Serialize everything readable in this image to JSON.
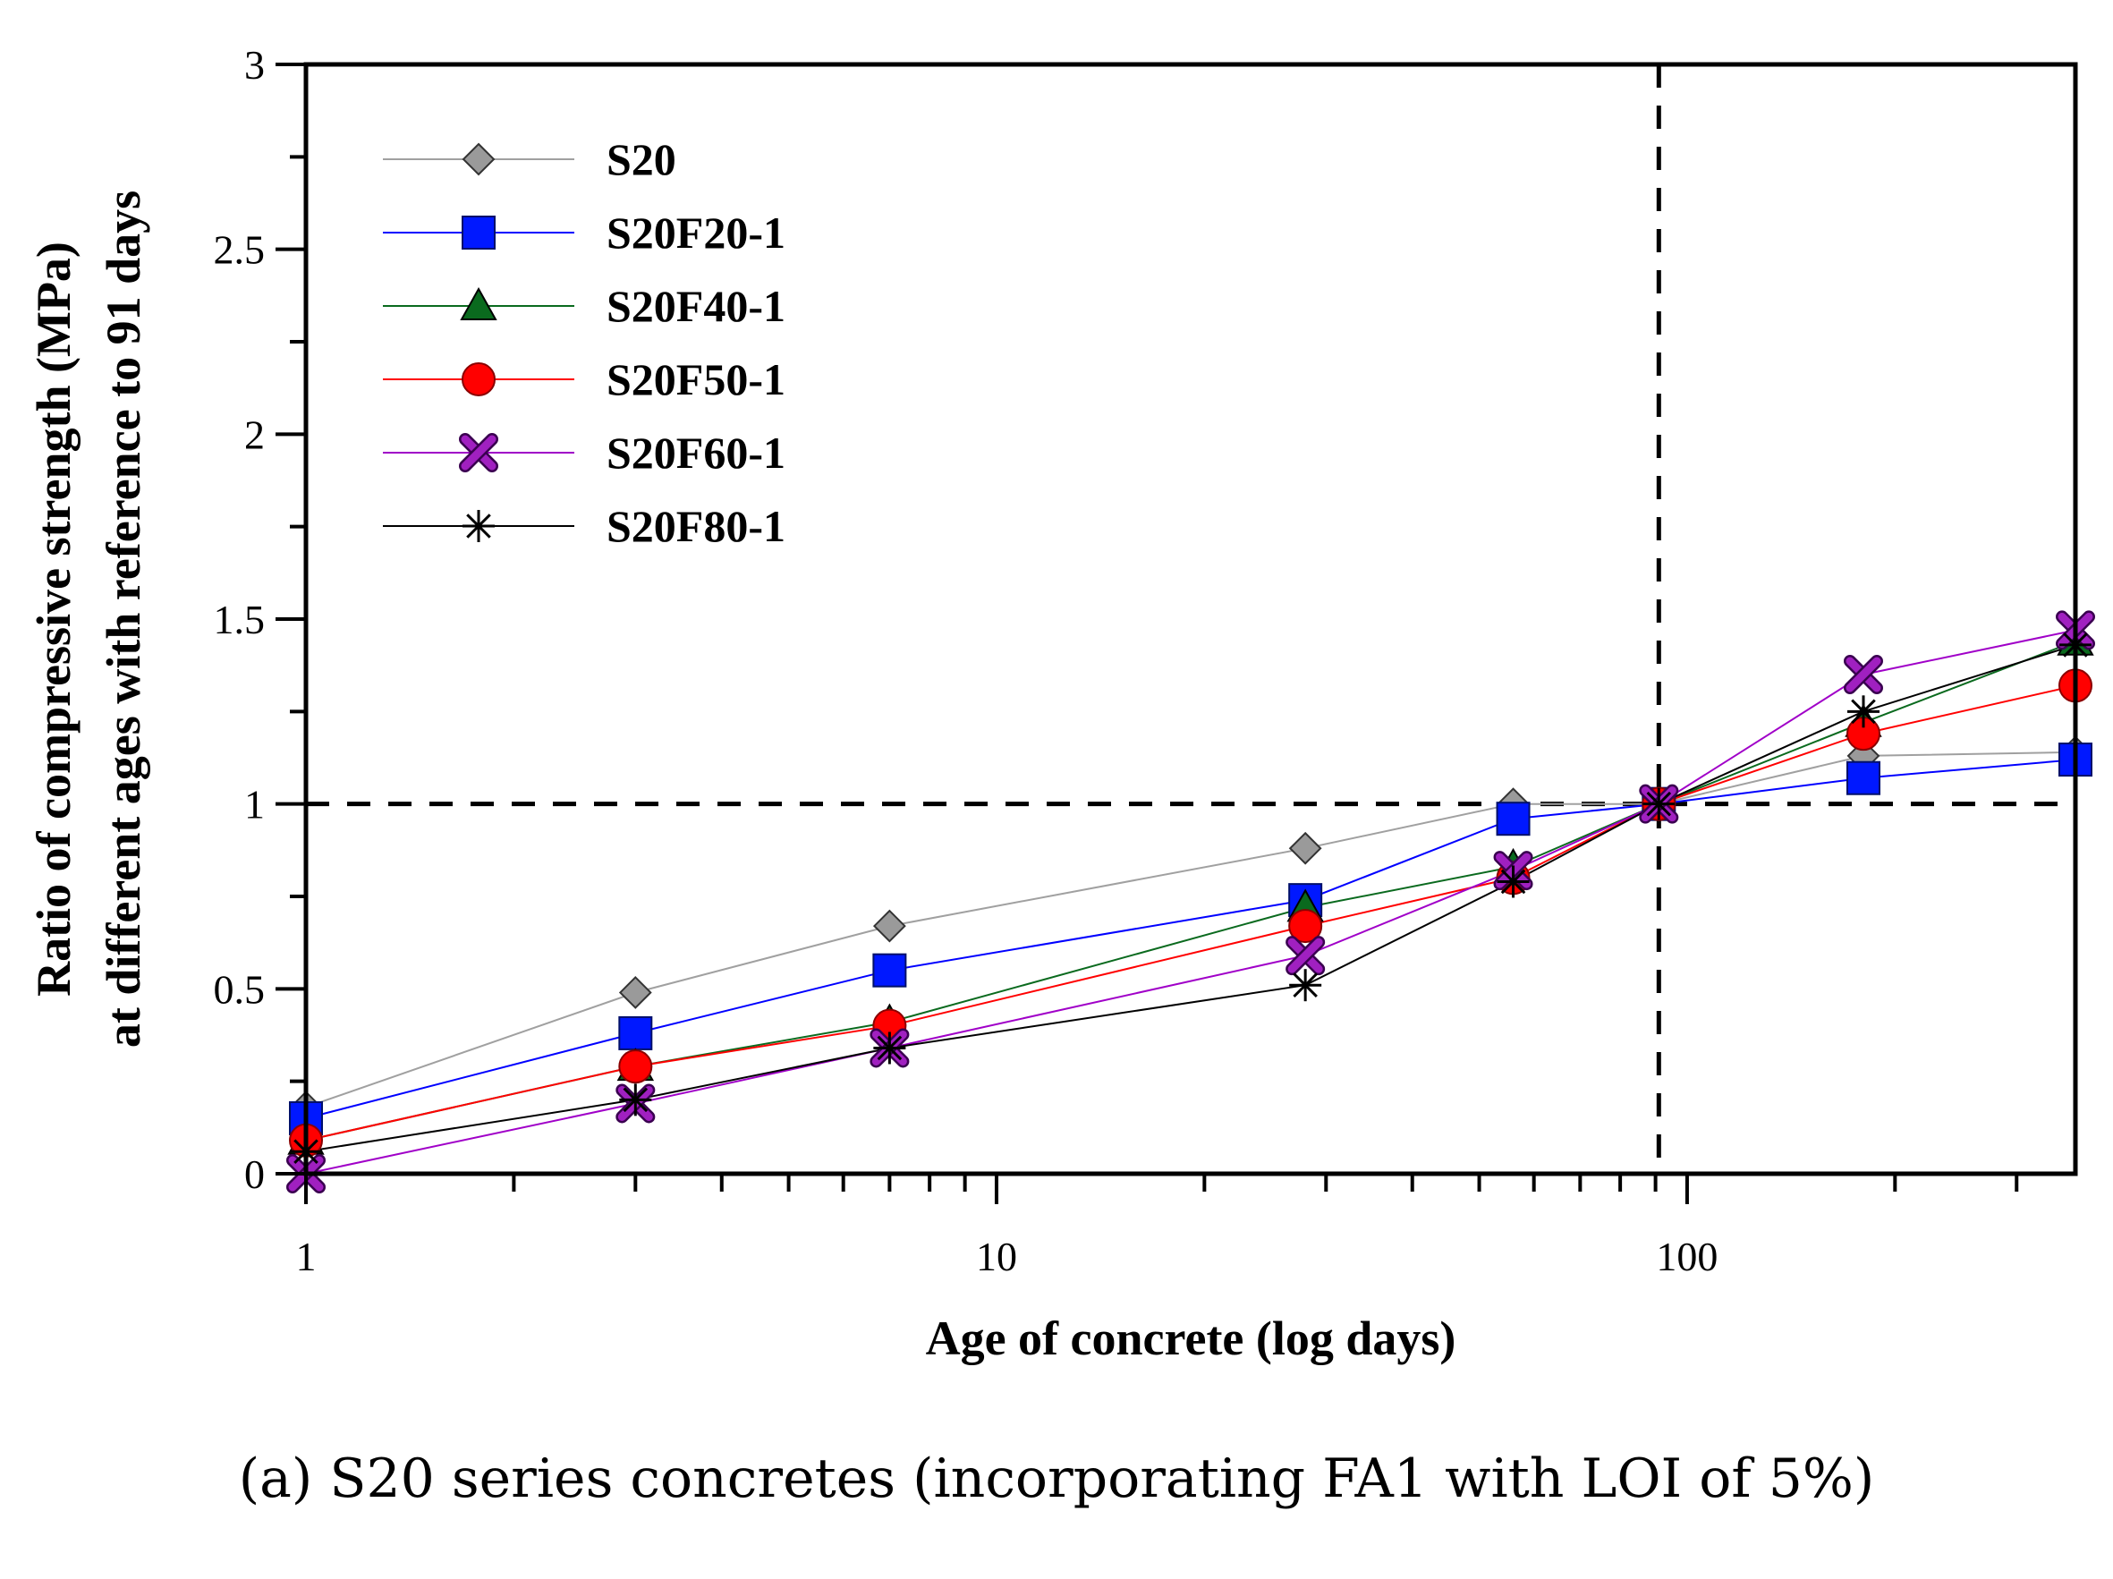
{
  "caption": "(a) S20 series concretes (incorporating FA1 with LOI of 5%)",
  "chart_data": {
    "type": "line",
    "title": "",
    "xlabel": "Age of concrete (log days)",
    "ylabel_line1": "Ratio of compressive strength (MPa)",
    "ylabel_line2": "at different ages with reference to 91 days",
    "xscale": "log",
    "xlim": [
      1,
      365
    ],
    "ylim": [
      0,
      3
    ],
    "x_ticks": [
      1,
      10,
      100
    ],
    "x_tick_labels": [
      "1",
      "10",
      "100"
    ],
    "y_ticks": [
      0,
      0.5,
      1,
      1.5,
      2,
      2.5,
      3
    ],
    "y_tick_labels": [
      "0",
      "0.5",
      "1",
      "1.5",
      "2",
      "2.5",
      "3"
    ],
    "x": [
      1,
      3,
      7,
      28,
      56,
      91,
      180,
      365
    ],
    "reference_lines": {
      "horizontal_y": 1,
      "vertical_x": 91,
      "style": "dashed"
    },
    "legend_position": "top-left",
    "series": [
      {
        "name": "S20",
        "marker": "diamond",
        "color": "#9a9a9a",
        "line_color": "#a0a0a0",
        "values": [
          0.18,
          0.49,
          0.67,
          0.88,
          1.0,
          1.0,
          1.13,
          1.14
        ]
      },
      {
        "name": "S20F20-1",
        "marker": "square",
        "color": "#0018ff",
        "line_color": "#0000ff",
        "values": [
          0.15,
          0.38,
          0.55,
          0.74,
          0.96,
          1.0,
          1.07,
          1.12
        ]
      },
      {
        "name": "S20F40-1",
        "marker": "triangle",
        "color": "#0a6a1e",
        "line_color": "#0a6a1e",
        "values": [
          0.09,
          0.29,
          0.41,
          0.72,
          0.83,
          1.0,
          1.22,
          1.44
        ]
      },
      {
        "name": "S20F50-1",
        "marker": "circle",
        "color": "#ff0000",
        "line_color": "#ff0000",
        "values": [
          0.09,
          0.29,
          0.4,
          0.67,
          0.8,
          1.0,
          1.19,
          1.32
        ]
      },
      {
        "name": "S20F60-1",
        "marker": "x",
        "color": "#a020c0",
        "line_color": "#a000c8",
        "values": [
          0.0,
          0.19,
          0.34,
          0.59,
          0.82,
          1.0,
          1.35,
          1.47
        ]
      },
      {
        "name": "S20F80-1",
        "marker": "star",
        "color": "#000000",
        "line_color": "#000000",
        "values": [
          0.06,
          0.2,
          0.34,
          0.51,
          0.79,
          1.0,
          1.25,
          1.43
        ]
      }
    ]
  }
}
